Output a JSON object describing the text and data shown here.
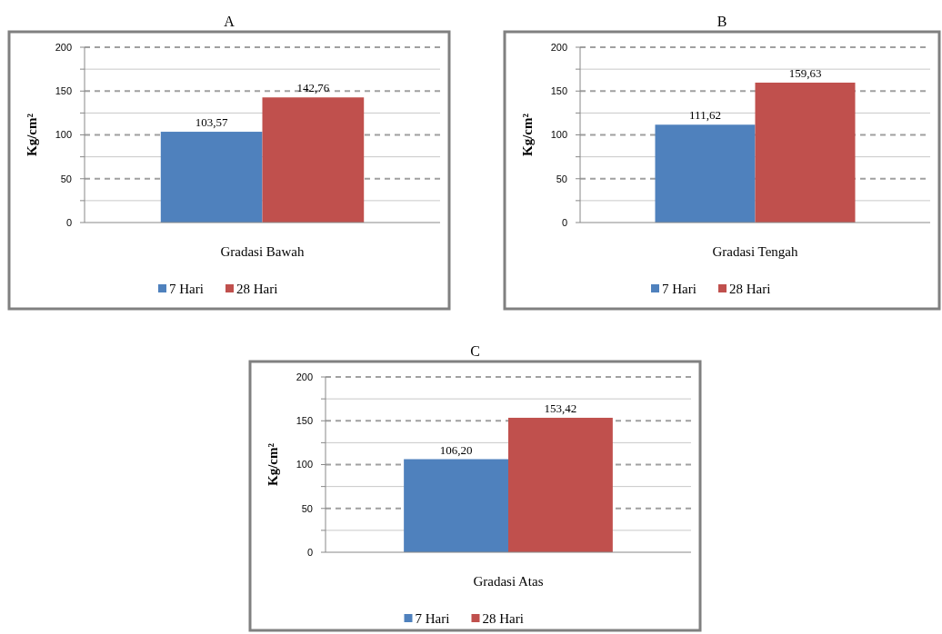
{
  "chart_data": [
    {
      "type": "bar",
      "title": "A",
      "ylabel": "Kg/cm²",
      "categories": [
        "Gradasi Bawah"
      ],
      "series": [
        {
          "name": "7 Hari",
          "color": "#4f81bd",
          "values": [
            103.57
          ],
          "value_labels": [
            "103,57"
          ]
        },
        {
          "name": "28 Hari",
          "color": "#c0504d",
          "values": [
            142.76
          ],
          "value_labels": [
            "142,76"
          ]
        }
      ],
      "ylim": [
        0,
        200
      ],
      "yticks": [
        0,
        {
          "value": 25,
          "label": null
        },
        50,
        {
          "value": 75,
          "label": null
        },
        100,
        {
          "value": 125,
          "label": null
        },
        150,
        {
          "value": 175,
          "label": null
        },
        200
      ],
      "grid": "y",
      "legend": "bottom"
    },
    {
      "type": "bar",
      "title": "B",
      "ylabel": "Kg/cm²",
      "categories": [
        "Gradasi Tengah"
      ],
      "series": [
        {
          "name": "7 Hari",
          "color": "#4f81bd",
          "values": [
            111.62
          ],
          "value_labels": [
            "111,62"
          ]
        },
        {
          "name": "28 Hari",
          "color": "#c0504d",
          "values": [
            159.63
          ],
          "value_labels": [
            "159,63"
          ]
        }
      ],
      "ylim": [
        0,
        200
      ],
      "yticks": [
        0,
        {
          "value": 25,
          "label": null
        },
        50,
        {
          "value": 75,
          "label": null
        },
        100,
        {
          "value": 125,
          "label": null
        },
        150,
        {
          "value": 175,
          "label": null
        },
        200
      ],
      "grid": "y",
      "legend": "bottom"
    },
    {
      "type": "bar",
      "title": "C",
      "ylabel": "Kg/cm²",
      "categories": [
        "Gradasi Atas"
      ],
      "series": [
        {
          "name": "7 Hari",
          "color": "#4f81bd",
          "values": [
            106.2
          ],
          "value_labels": [
            "106,20"
          ]
        },
        {
          "name": "28 Hari",
          "color": "#c0504d",
          "values": [
            153.42
          ],
          "value_labels": [
            "153,42"
          ]
        }
      ],
      "ylim": [
        0,
        200
      ],
      "yticks": [
        0,
        {
          "value": 25,
          "label": null
        },
        50,
        {
          "value": 75,
          "label": null
        },
        100,
        {
          "value": 125,
          "label": null
        },
        150,
        {
          "value": 175,
          "label": null
        },
        200
      ],
      "grid": "y",
      "legend": "bottom"
    }
  ]
}
